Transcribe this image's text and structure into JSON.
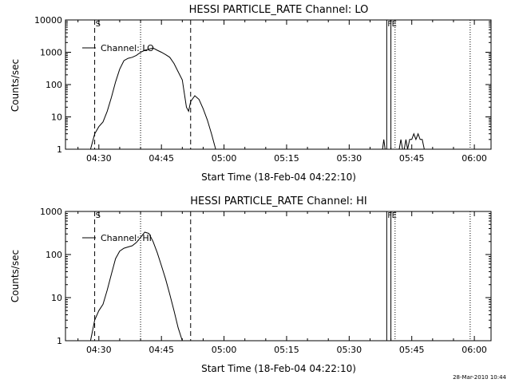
{
  "footer": {
    "timestamp": "28-Mar-2010 10:44"
  },
  "colors": {
    "background": "#ffffff",
    "foreground": "#000000"
  },
  "chart_data": [
    {
      "type": "line",
      "title": "HESSI PARTICLE_RATE Channel: LO",
      "xlabel": "Start Time (18-Feb-04 04:22:10)",
      "ylabel": "Counts/sec",
      "yscale": "log",
      "ylim": [
        1,
        10000
      ],
      "y_tick_labels": [
        "1",
        "10",
        "100",
        "1000",
        "10000"
      ],
      "y_tick_values": [
        1,
        10,
        100,
        1000,
        10000
      ],
      "xlim": [
        "04:22",
        "06:04"
      ],
      "x_tick_labels": [
        "04:30",
        "04:45",
        "05:00",
        "05:15",
        "05:30",
        "05:45",
        "06:00"
      ],
      "legend": {
        "placement": "top-left",
        "entries": [
          "Channel: LO"
        ]
      },
      "grid": false,
      "markers": [
        {
          "time": "04:29",
          "style": "dashed",
          "label": "S"
        },
        {
          "time": "04:52",
          "style": "dashed",
          "label": ""
        },
        {
          "time": "05:39",
          "style": "solid",
          "label": "F"
        },
        {
          "time": "05:40",
          "style": "solid",
          "label": "E"
        }
      ],
      "dotted_lines": [
        "04:40",
        "05:41",
        "05:59"
      ],
      "series": [
        {
          "name": "Channel: LO",
          "segments": [
            [
              [
                "04:28",
                1
              ],
              [
                "04:29",
                3
              ],
              [
                "04:30",
                5
              ],
              [
                "04:31",
                7
              ],
              [
                "04:32",
                15
              ],
              [
                "04:33",
                40
              ],
              [
                "04:34",
                120
              ],
              [
                "04:35",
                300
              ],
              [
                "04:36",
                550
              ],
              [
                "04:37",
                650
              ],
              [
                "04:38",
                700
              ],
              [
                "04:39",
                800
              ],
              [
                "04:40",
                1000
              ],
              [
                "04:41",
                1150
              ],
              [
                "04:42",
                1250
              ],
              [
                "04:43",
                1350
              ],
              [
                "04:44",
                1150
              ],
              [
                "04:45",
                1000
              ],
              [
                "04:46",
                850
              ],
              [
                "04:47",
                700
              ],
              [
                "04:48",
                450
              ],
              [
                "04:49",
                250
              ],
              [
                "04:50",
                140
              ],
              [
                "04:51",
                20
              ],
              [
                "04:51.5",
                15
              ],
              [
                "04:52",
                30
              ],
              [
                "04:53",
                45
              ],
              [
                "04:54",
                35
              ],
              [
                "04:55",
                18
              ],
              [
                "04:56",
                8
              ],
              [
                "04:57",
                3
              ],
              [
                "04:58",
                1
              ]
            ],
            [
              [
                "05:38",
                1
              ],
              [
                "05:38.3",
                2
              ],
              [
                "05:38.6",
                1
              ]
            ],
            [
              [
                "05:42",
                1
              ],
              [
                "05:42.4",
                2
              ],
              [
                "05:42.8",
                1
              ],
              [
                "05:43.2",
                1
              ],
              [
                "05:43.6",
                2
              ],
              [
                "05:44",
                1
              ],
              [
                "05:44.5",
                2
              ],
              [
                "05:45",
                2
              ],
              [
                "05:45.5",
                3
              ],
              [
                "05:46",
                2
              ],
              [
                "05:46.5",
                3
              ],
              [
                "05:47",
                2
              ],
              [
                "05:47.5",
                2
              ],
              [
                "05:48",
                1
              ]
            ]
          ]
        }
      ]
    },
    {
      "type": "line",
      "title": "HESSI PARTICLE_RATE Channel: HI",
      "xlabel": "Start Time (18-Feb-04 04:22:10)",
      "ylabel": "Counts/sec",
      "yscale": "log",
      "ylim": [
        1,
        1000
      ],
      "y_tick_labels": [
        "1",
        "10",
        "100",
        "1000"
      ],
      "y_tick_values": [
        1,
        10,
        100,
        1000
      ],
      "xlim": [
        "04:22",
        "06:04"
      ],
      "x_tick_labels": [
        "04:30",
        "04:45",
        "05:00",
        "05:15",
        "05:30",
        "05:45",
        "06:00"
      ],
      "legend": {
        "placement": "top-left",
        "entries": [
          "Channel: HI"
        ]
      },
      "grid": false,
      "markers": [
        {
          "time": "04:29",
          "style": "dashed",
          "label": "S"
        },
        {
          "time": "04:52",
          "style": "dashed",
          "label": ""
        },
        {
          "time": "05:39",
          "style": "solid",
          "label": "F"
        },
        {
          "time": "05:40",
          "style": "solid",
          "label": "E"
        }
      ],
      "dotted_lines": [
        "04:40",
        "05:41",
        "05:59"
      ],
      "series": [
        {
          "name": "Channel: HI",
          "segments": [
            [
              [
                "04:28",
                1
              ],
              [
                "04:29",
                3
              ],
              [
                "04:30",
                5
              ],
              [
                "04:31",
                7
              ],
              [
                "04:32",
                15
              ],
              [
                "04:33",
                35
              ],
              [
                "04:34",
                80
              ],
              [
                "04:35",
                120
              ],
              [
                "04:36",
                140
              ],
              [
                "04:37",
                150
              ],
              [
                "04:38",
                160
              ],
              [
                "04:39",
                190
              ],
              [
                "04:40",
                250
              ],
              [
                "04:41",
                330
              ],
              [
                "04:42",
                310
              ],
              [
                "04:43",
                200
              ],
              [
                "04:44",
                110
              ],
              [
                "04:45",
                55
              ],
              [
                "04:46",
                27
              ],
              [
                "04:47",
                12
              ],
              [
                "04:48",
                5
              ],
              [
                "04:49",
                2
              ],
              [
                "04:50",
                1
              ]
            ]
          ]
        }
      ]
    }
  ]
}
